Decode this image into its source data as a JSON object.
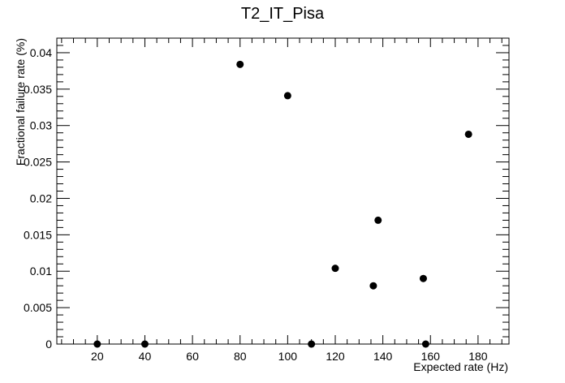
{
  "chart_data": {
    "type": "scatter",
    "title": "T2_IT_Pisa",
    "xlabel": "Expected rate (Hz)",
    "ylabel": "Fractional failure rate (%)",
    "xlim": [
      3,
      193
    ],
    "ylim": [
      0,
      0.042
    ],
    "x_ticks": [
      20,
      40,
      60,
      80,
      100,
      120,
      140,
      160,
      180
    ],
    "y_ticks": [
      0,
      0.005,
      0.01,
      0.015,
      0.02,
      0.025,
      0.03,
      0.035,
      0.04
    ],
    "x_tick_labels": [
      "20",
      "40",
      "60",
      "80",
      "100",
      "120",
      "140",
      "160",
      "180"
    ],
    "y_tick_labels": [
      "0",
      "0.005",
      "0.01",
      "0.015",
      "0.02",
      "0.025",
      "0.03",
      "0.035",
      "0.04"
    ],
    "grid": false,
    "legend": "none",
    "marker_color": "#000000",
    "points": [
      {
        "x": 20,
        "y": 0
      },
      {
        "x": 40,
        "y": 0
      },
      {
        "x": 80,
        "y": 0.0384
      },
      {
        "x": 100,
        "y": 0.0341
      },
      {
        "x": 110,
        "y": 0
      },
      {
        "x": 120,
        "y": 0.0104
      },
      {
        "x": 136,
        "y": 0.008
      },
      {
        "x": 138,
        "y": 0.017
      },
      {
        "x": 157,
        "y": 0.009
      },
      {
        "x": 158,
        "y": 0
      },
      {
        "x": 176,
        "y": 0.0288
      }
    ]
  }
}
